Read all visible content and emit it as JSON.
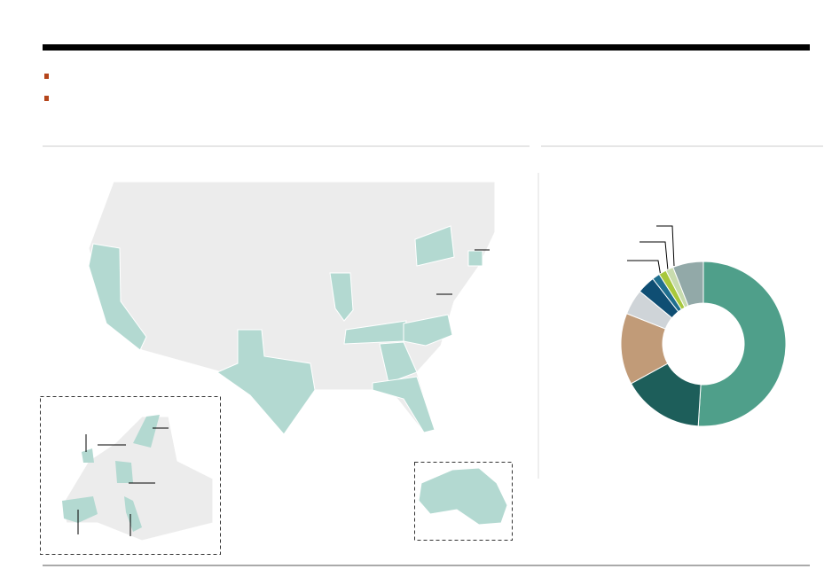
{
  "chart_data": {
    "type": "pie",
    "donut": true,
    "categories": [
      null,
      null,
      null,
      null,
      null,
      null,
      null,
      null,
      null
    ],
    "values": [
      51,
      16,
      14,
      5,
      3.5,
      1.5,
      1.5,
      1.5,
      6
    ],
    "colors": [
      "#4f9f8a",
      "#1d5e5a",
      "#c19b78",
      "#cfd4d8",
      "#0f4e73",
      "#1f6f8f",
      "#a8c83c",
      "#c8dcae",
      "#92a9a8"
    ]
  }
}
